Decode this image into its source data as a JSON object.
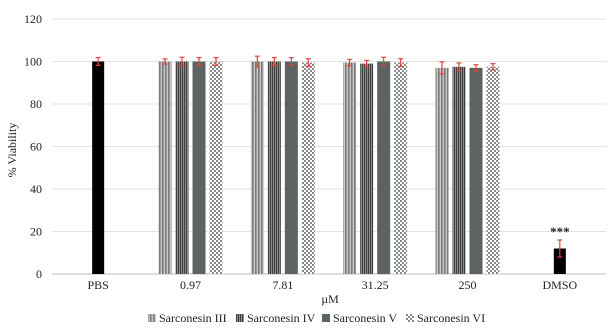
{
  "chart_data": {
    "type": "bar",
    "xlabel": "µM",
    "ylabel": "% Viability",
    "ylim": [
      0,
      120
    ],
    "yticks": [
      0,
      20,
      40,
      60,
      80,
      100,
      120
    ],
    "grid": true,
    "legend_position": "bottom",
    "categories": [
      "PBS",
      "0.97",
      "7.81",
      "31.25",
      "250",
      "DMSO"
    ],
    "controls": [
      {
        "category": "PBS",
        "value": 100,
        "error": 1.8,
        "color": "#000000"
      },
      {
        "category": "DMSO",
        "value": 12,
        "error": 4,
        "color": "#000000",
        "annotation": "***"
      }
    ],
    "series": [
      {
        "name": "Sarconesin III",
        "pattern": "vertical-stripes",
        "color": "#9e9e9e",
        "values": [
          null,
          100,
          100,
          99.5,
          97,
          null
        ],
        "errors": [
          null,
          1.2,
          2.5,
          1.5,
          2.8,
          null
        ]
      },
      {
        "name": "Sarconesin IV",
        "pattern": "fine-stripes",
        "color": "#6f6f6f",
        "values": [
          null,
          100,
          100,
          99,
          97.5,
          null
        ],
        "errors": [
          null,
          2,
          1.8,
          1.5,
          1.8,
          null
        ]
      },
      {
        "name": "Sarconesin V",
        "pattern": "solid",
        "color": "#5d6363",
        "values": [
          null,
          100,
          100,
          100,
          97,
          null
        ],
        "errors": [
          null,
          1.8,
          1.8,
          2,
          1.5,
          null
        ]
      },
      {
        "name": "Sarconesin VI",
        "pattern": "checker",
        "color": "#9a9a9a",
        "values": [
          null,
          100,
          99.5,
          99.5,
          97.5,
          null
        ],
        "errors": [
          null,
          1.8,
          1.8,
          1.8,
          1.5,
          null
        ]
      }
    ],
    "error_bar_color": "#e0443a"
  }
}
